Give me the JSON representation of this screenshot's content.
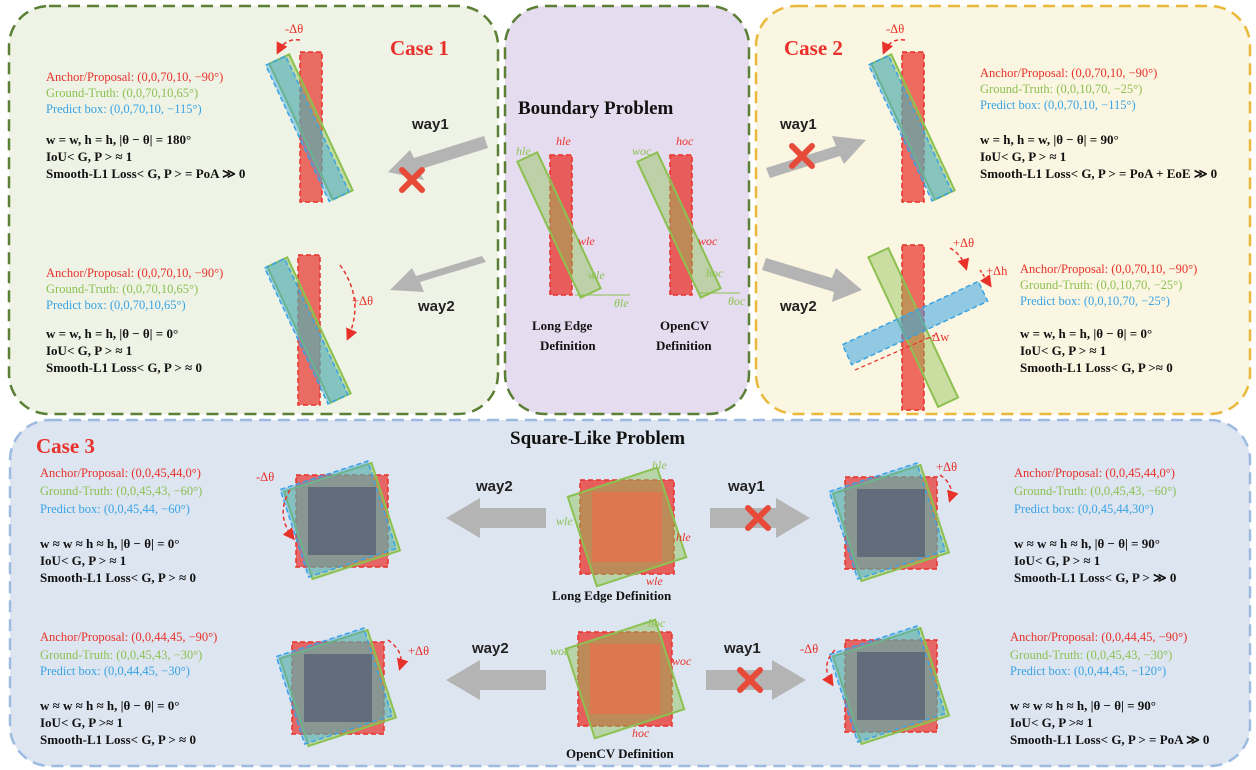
{
  "panels": {
    "case1": {
      "title": "Case 1"
    },
    "case2": {
      "title": "Case 2"
    },
    "case3": {
      "title": "Case 3"
    },
    "boundary": {
      "title": "Boundary Problem"
    },
    "square": {
      "title": "Square-Like Problem"
    }
  },
  "colors": {
    "red": "#e8312a",
    "green": "#8cc152",
    "blue": "#3aa3e3",
    "case1_bg": "#eef3e6",
    "case1_border": "#5a7f35",
    "mid_bg": "#e6dcef",
    "case2_bg": "#fbf6e1",
    "case2_border": "#eab83a",
    "case3_bg": "#dde5f1",
    "case3_border": "#9dbbe0"
  },
  "ways": {
    "way1": "way1",
    "way2": "way2"
  },
  "definitions": {
    "long_edge_1": "Long Edge",
    "long_edge_2": "Definition",
    "opencv_1": "OpenCV",
    "opencv_2": "Definition",
    "long_edge_full": "Long Edge Definition",
    "opencv_full": "OpenCV Definition"
  },
  "symbols": {
    "h_le": "hle",
    "w_le": "wle",
    "theta_le": "θle",
    "h_oc": "hoc",
    "w_oc": "woc",
    "theta_oc": "θoc",
    "minus_dtheta": "-Δθ",
    "plus_dtheta": "+Δθ",
    "plus_dh": "+Δh",
    "minus_dw": "-Δw"
  },
  "case1": {
    "top": {
      "anchor": "Anchor/Proposal: (0,0,70,10, −90°)",
      "gt": "Ground-Truth: (0,0,70,10,65°)",
      "pred": "Predict box: (0,0,70,10, −115°)",
      "l1": "w = w, h = h, |θ − θ| = 180°",
      "l2": "IoU< G, P > ≈ 1",
      "l3": "Smooth-L1 Loss< G, P > = PoA ≫ 0"
    },
    "bottom": {
      "anchor": "Anchor/Proposal: (0,0,70,10, −90°)",
      "gt": "Ground-Truth: (0,0,70,10,65°)",
      "pred": "Predict box: (0,0,70,10,65°)",
      "l1": "w = w, h = h, |θ − θ| = 0°",
      "l2": "IoU< G, P > ≈ 1",
      "l3": "Smooth-L1 Loss< G, P > ≈ 0"
    }
  },
  "case2": {
    "top": {
      "anchor": "Anchor/Proposal: (0,0,70,10, −90°)",
      "gt": "Ground-Truth: (0,0,10,70, −25°)",
      "pred": "Predict box: (0,0,70,10, −115°)",
      "l1": "w = h, h = w, |θ − θ| = 90°",
      "l2": "IoU< G, P > ≈ 1",
      "l3": "Smooth-L1 Loss< G, P > = PoA + EoE ≫ 0"
    },
    "bottom": {
      "anchor": "Anchor/Proposal: (0,0,70,10, −90°)",
      "gt": "Ground-Truth: (0,0,10,70, −25°)",
      "pred": "Predict box: (0,0,10,70, −25°)",
      "l1": "w = w, h = h, |θ − θ| = 0°",
      "l2": "IoU< G, P > ≈ 1",
      "l3": "Smooth-L1 Loss< G, P >≈ 0"
    }
  },
  "case3": {
    "tl": {
      "anchor": "Anchor/Proposal: (0,0,45,44,0°)",
      "gt": "Ground-Truth: (0,0,45,43, −60°)",
      "pred": "Predict box: (0,0,45,44, −60°)",
      "l1": "w ≈ w ≈ h ≈ h, |θ − θ| = 0°",
      "l2": "IoU< G, P > ≈ 1",
      "l3": "Smooth-L1 Loss< G, P > ≈ 0"
    },
    "tr": {
      "anchor": "Anchor/Proposal: (0,0,45,44,0°)",
      "gt": "Ground-Truth: (0,0,45,43, −60°)",
      "pred": "Predict box: (0,0,45,44,30°)",
      "l1": "w ≈ w ≈ h ≈ h, |θ − θ| = 90°",
      "l2": "IoU< G, P > ≈ 1",
      "l3": "Smooth-L1 Loss< G, P > ≫ 0"
    },
    "bl": {
      "anchor": "Anchor/Proposal: (0,0,44,45, −90°)",
      "gt": "Ground-Truth: (0,0,45,43, −30°)",
      "pred": "Predict box: (0,0,44,45, −30°)",
      "l1": "w ≈ w ≈ h ≈ h, |θ − θ| = 0°",
      "l2": "IoU< G, P >≈ 1",
      "l3": "Smooth-L1 Loss< G, P > ≈ 0"
    },
    "br": {
      "anchor": "Anchor/Proposal: (0,0,44,45, −90°)",
      "gt": "Ground-Truth: (0,0,45,43, −30°)",
      "pred": "Predict box: (0,0,44,45, −120°)",
      "l1": "w ≈ w ≈ h ≈ h, |θ − θ| = 90°",
      "l2": "IoU< G, P >≈ 1",
      "l3": "Smooth-L1 Loss< G, P > = PoA ≫ 0"
    }
  }
}
